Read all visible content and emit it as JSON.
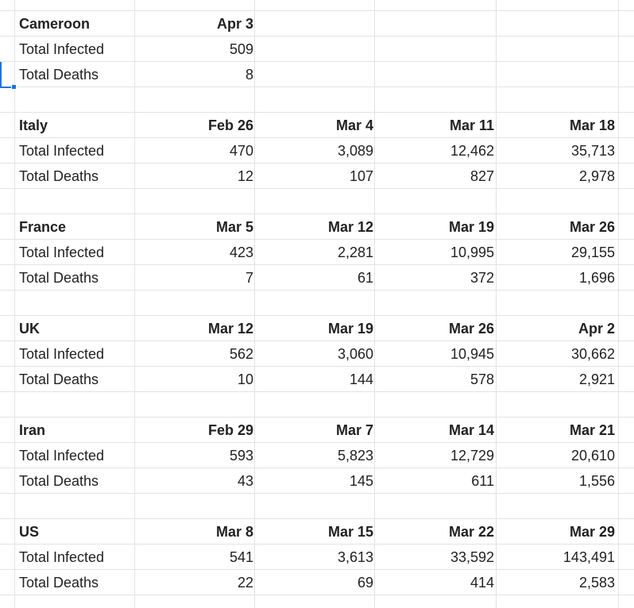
{
  "blocks": [
    {
      "country": "Cameroon",
      "dates": [
        "Apr 3"
      ],
      "infected_label": "Total Infected",
      "infected": [
        "509"
      ],
      "deaths_label": "Total Deaths",
      "deaths": [
        "8"
      ]
    },
    {
      "country": "Italy",
      "dates": [
        "Feb 26",
        "Mar 4",
        "Mar 11",
        "Mar 18"
      ],
      "infected_label": "Total Infected",
      "infected": [
        "470",
        "3,089",
        "12,462",
        "35,713"
      ],
      "deaths_label": "Total Deaths",
      "deaths": [
        "12",
        "107",
        "827",
        "2,978"
      ]
    },
    {
      "country": "France",
      "dates": [
        "Mar 5",
        "Mar 12",
        "Mar 19",
        "Mar 26"
      ],
      "infected_label": "Total Infected",
      "infected": [
        "423",
        "2,281",
        "10,995",
        "29,155"
      ],
      "deaths_label": "Total Deaths",
      "deaths": [
        "7",
        "61",
        "372",
        "1,696"
      ]
    },
    {
      "country": "UK",
      "dates": [
        "Mar 12",
        "Mar 19",
        "Mar 26",
        "Apr 2"
      ],
      "infected_label": "Total Infected",
      "infected": [
        "562",
        "3,060",
        "10,945",
        "30,662"
      ],
      "deaths_label": "Total Deaths",
      "deaths": [
        "10",
        "144",
        "578",
        "2,921"
      ]
    },
    {
      "country": "Iran",
      "dates": [
        "Feb 29",
        "Mar 7",
        "Mar 14",
        "Mar 21"
      ],
      "infected_label": "Total Infected",
      "infected": [
        "593",
        "5,823",
        "12,729",
        "20,610"
      ],
      "deaths_label": "Total Deaths",
      "deaths": [
        "43",
        "145",
        "611",
        "1,556"
      ]
    },
    {
      "country": "US",
      "dates": [
        "Mar 8",
        "Mar 15",
        "Mar 22",
        "Mar 29"
      ],
      "infected_label": "Total Infected",
      "infected": [
        "541",
        "3,613",
        "33,592",
        "143,491"
      ],
      "deaths_label": "Total Deaths",
      "deaths": [
        "22",
        "69",
        "414",
        "2,583"
      ]
    }
  ],
  "colors": {
    "gridline": "#e2e3e3",
    "selection": "#1a73e8",
    "text": "#222222"
  }
}
